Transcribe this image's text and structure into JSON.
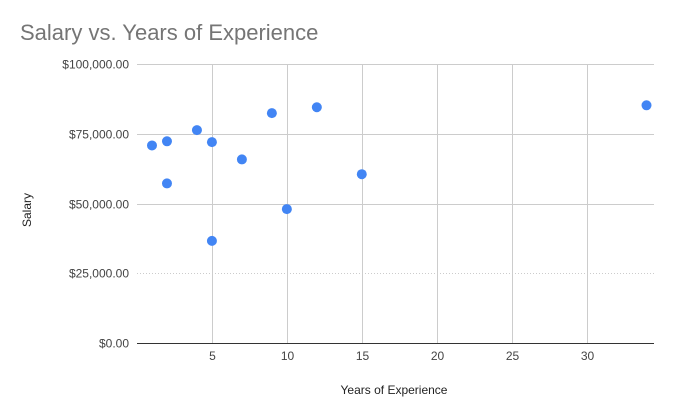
{
  "chart_data": {
    "type": "scatter",
    "title": "Salary vs. Years of Experience",
    "xlabel": "Years of Experience",
    "ylabel": "Salary",
    "xlim": [
      0,
      34.5
    ],
    "ylim": [
      0,
      100000
    ],
    "xticks": [
      5,
      10,
      15,
      20,
      25,
      30
    ],
    "xtick_labels": [
      "5",
      "10",
      "15",
      "20",
      "25",
      "30"
    ],
    "yticks": [
      0,
      25000,
      50000,
      75000,
      100000
    ],
    "ytick_labels": [
      "$0.00",
      "$25,000.00",
      "$50,000.00",
      "$75,000.00",
      "$100,000.00"
    ],
    "grid": true,
    "marker_color": "#4285f4",
    "points": [
      {
        "x": 1,
        "y": 70800
      },
      {
        "x": 2,
        "y": 72300
      },
      {
        "x": 2,
        "y": 57200
      },
      {
        "x": 4,
        "y": 76300
      },
      {
        "x": 5,
        "y": 72000
      },
      {
        "x": 5,
        "y": 36600
      },
      {
        "x": 7,
        "y": 65800
      },
      {
        "x": 9,
        "y": 82400
      },
      {
        "x": 10,
        "y": 48000
      },
      {
        "x": 12,
        "y": 84500
      },
      {
        "x": 15,
        "y": 60500
      },
      {
        "x": 34,
        "y": 85200
      }
    ]
  }
}
